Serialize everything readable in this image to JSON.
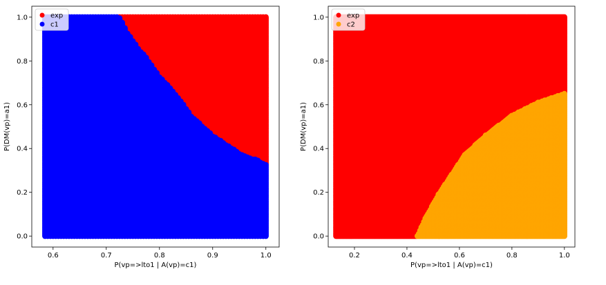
{
  "chart_data": [
    {
      "type": "scatter",
      "name": "left",
      "xlabel": "P(vp=>lto1 | A(vp)=c1)",
      "ylabel": "P(DM(vp)=a1)",
      "xlim": [
        0.56,
        1.025
      ],
      "ylim": [
        -0.05,
        1.05
      ],
      "xticks": [
        "0.6",
        "0.7",
        "0.8",
        "0.9",
        "1.0"
      ],
      "yticks": [
        "0.0",
        "0.2",
        "0.4",
        "0.6",
        "0.8",
        "1.0"
      ],
      "x_range": [
        0.585,
        1.0
      ],
      "y_range": [
        0.0,
        1.0
      ],
      "legend_position": "top-left",
      "series": [
        {
          "name": "exp",
          "color": "#ff0000",
          "region": "upper-right"
        },
        {
          "name": "c1",
          "color": "#0000ff",
          "region": "lower-left"
        }
      ],
      "boundary": [
        [
          0.725,
          1.0
        ],
        [
          0.74,
          0.93
        ],
        [
          0.76,
          0.86
        ],
        [
          0.78,
          0.8
        ],
        [
          0.8,
          0.73
        ],
        [
          0.83,
          0.65
        ],
        [
          0.86,
          0.55
        ],
        [
          0.9,
          0.46
        ],
        [
          0.95,
          0.38
        ],
        [
          1.0,
          0.33
        ]
      ]
    },
    {
      "type": "scatter",
      "name": "right",
      "xlabel": "P(vp=>lto1 | A(vp)=c1)",
      "ylabel": "P(DM(vp)=a1)",
      "xlim": [
        0.1,
        1.04
      ],
      "ylim": [
        -0.05,
        1.05
      ],
      "xticks": [
        "0.2",
        "0.4",
        "0.6",
        "0.8",
        "1.0"
      ],
      "yticks": [
        "0.0",
        "0.2",
        "0.4",
        "0.6",
        "0.8",
        "1.0"
      ],
      "x_range": [
        0.13,
        1.0
      ],
      "y_range": [
        0.0,
        1.0
      ],
      "legend_position": "top-left",
      "series": [
        {
          "name": "exp",
          "color": "#ff0000",
          "region": "upper-left"
        },
        {
          "name": "c2",
          "color": "#ffa500",
          "region": "lower-right"
        }
      ],
      "boundary": [
        [
          0.44,
          0.0
        ],
        [
          0.47,
          0.08
        ],
        [
          0.52,
          0.19
        ],
        [
          0.57,
          0.28
        ],
        [
          0.62,
          0.37
        ],
        [
          0.7,
          0.46
        ],
        [
          0.8,
          0.55
        ],
        [
          0.9,
          0.61
        ],
        [
          1.0,
          0.65
        ]
      ]
    }
  ]
}
